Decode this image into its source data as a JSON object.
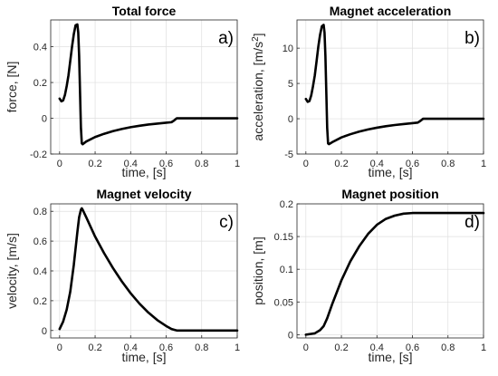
{
  "chart_data": [
    {
      "type": "line",
      "title": "Total force",
      "panel_letter": "a)",
      "xlabel": "time, [s]",
      "ylabel": "force, [N]",
      "xlim": [
        -0.05,
        1.0
      ],
      "ylim": [
        -0.2,
        0.55
      ],
      "xticks": [
        0,
        0.2,
        0.4,
        0.6,
        0.8,
        1
      ],
      "xtick_labels": [
        "0",
        "0.2",
        "0.4",
        "0.6",
        "0.8",
        "1"
      ],
      "yticks": [
        -0.2,
        0,
        0.2,
        0.4
      ],
      "ytick_labels": [
        "-0.2",
        "0",
        "0.2",
        "0.4"
      ],
      "grid": true,
      "series": [
        {
          "x": [
            0.0,
            0.01,
            0.02,
            0.03,
            0.04,
            0.05,
            0.06,
            0.07,
            0.08,
            0.09,
            0.1,
            0.105,
            0.11,
            0.115,
            0.12,
            0.125,
            0.13,
            0.15,
            0.2,
            0.25,
            0.3,
            0.35,
            0.4,
            0.45,
            0.5,
            0.55,
            0.6,
            0.63,
            0.645,
            0.66,
            0.7,
            0.8,
            0.9,
            1.0
          ],
          "y": [
            0.11,
            0.095,
            0.1,
            0.13,
            0.18,
            0.24,
            0.32,
            0.4,
            0.47,
            0.52,
            0.525,
            0.48,
            0.35,
            0.15,
            -0.05,
            -0.14,
            -0.145,
            -0.13,
            -0.105,
            -0.087,
            -0.072,
            -0.06,
            -0.05,
            -0.042,
            -0.035,
            -0.03,
            -0.025,
            -0.022,
            -0.012,
            0.0,
            0.0,
            0.0,
            0.0,
            0.0
          ]
        }
      ]
    },
    {
      "type": "line",
      "title": "Magnet acceleration",
      "panel_letter": "b)",
      "xlabel": "time, [s]",
      "ylabel": "acceleration, [m/s",
      "ylabel_sup": "2",
      "ylabel_end": "]",
      "xlim": [
        -0.05,
        1.0
      ],
      "ylim": [
        -5,
        14
      ],
      "xticks": [
        0,
        0.2,
        0.4,
        0.6,
        0.8,
        1
      ],
      "xtick_labels": [
        "0",
        "0.2",
        "0.4",
        "0.6",
        "0.8",
        "1"
      ],
      "yticks": [
        -5,
        0,
        5,
        10
      ],
      "ytick_labels": [
        "-5",
        "0",
        "5",
        "10"
      ],
      "grid": true,
      "series": [
        {
          "x": [
            0.0,
            0.01,
            0.02,
            0.03,
            0.04,
            0.05,
            0.06,
            0.07,
            0.08,
            0.09,
            0.1,
            0.105,
            0.11,
            0.115,
            0.12,
            0.125,
            0.13,
            0.15,
            0.2,
            0.25,
            0.3,
            0.35,
            0.4,
            0.45,
            0.5,
            0.55,
            0.6,
            0.63,
            0.645,
            0.66,
            0.7,
            0.8,
            0.9,
            1.0
          ],
          "y": [
            2.8,
            2.4,
            2.5,
            3.3,
            4.6,
            6.1,
            8.1,
            10.2,
            11.9,
            13.1,
            13.3,
            12.2,
            8.9,
            3.8,
            -1.3,
            -3.5,
            -3.6,
            -3.3,
            -2.65,
            -2.2,
            -1.82,
            -1.52,
            -1.27,
            -1.06,
            -0.89,
            -0.76,
            -0.63,
            -0.55,
            -0.3,
            0.0,
            0.0,
            0.0,
            0.0,
            0.0
          ]
        }
      ]
    },
    {
      "type": "line",
      "title": "Magnet velocity",
      "panel_letter": "c)",
      "xlabel": "time, [s]",
      "ylabel": "velocity, [m/s]",
      "xlim": [
        -0.05,
        1.0
      ],
      "ylim": [
        -0.05,
        0.85
      ],
      "xticks": [
        0,
        0.2,
        0.4,
        0.6,
        0.8,
        1
      ],
      "xtick_labels": [
        "0",
        "0.2",
        "0.4",
        "0.6",
        "0.8",
        "1"
      ],
      "yticks": [
        0,
        0.2,
        0.4,
        0.6,
        0.8
      ],
      "ytick_labels": [
        "0",
        "0.2",
        "0.4",
        "0.6",
        "0.8"
      ],
      "grid": true,
      "series": [
        {
          "x": [
            0.0,
            0.02,
            0.04,
            0.06,
            0.08,
            0.1,
            0.11,
            0.12,
            0.125,
            0.13,
            0.15,
            0.2,
            0.25,
            0.3,
            0.35,
            0.4,
            0.45,
            0.5,
            0.55,
            0.6,
            0.63,
            0.65,
            0.66,
            0.7,
            0.8,
            0.9,
            1.0
          ],
          "y": [
            0.01,
            0.06,
            0.14,
            0.26,
            0.44,
            0.66,
            0.76,
            0.81,
            0.82,
            0.81,
            0.76,
            0.63,
            0.52,
            0.42,
            0.33,
            0.25,
            0.18,
            0.12,
            0.07,
            0.03,
            0.01,
            0.003,
            0.0,
            0.0,
            0.0,
            0.0,
            0.0
          ]
        }
      ]
    },
    {
      "type": "line",
      "title": "Magnet position",
      "panel_letter": "d)",
      "xlabel": "time, [s]",
      "ylabel": "position, [m]",
      "xlim": [
        -0.05,
        1.0
      ],
      "ylim": [
        -0.005,
        0.2
      ],
      "xticks": [
        0,
        0.2,
        0.4,
        0.6,
        0.8,
        1
      ],
      "xtick_labels": [
        "0",
        "0.2",
        "0.4",
        "0.6",
        "0.8",
        "1"
      ],
      "yticks": [
        0,
        0.05,
        0.1,
        0.15,
        0.2
      ],
      "ytick_labels": [
        "0",
        "0.05",
        "0.1",
        "0.15",
        "0.2"
      ],
      "grid": true,
      "series": [
        {
          "x": [
            0.0,
            0.05,
            0.08,
            0.1,
            0.12,
            0.15,
            0.2,
            0.25,
            0.3,
            0.35,
            0.4,
            0.45,
            0.5,
            0.55,
            0.6,
            0.65,
            0.7,
            0.8,
            0.9,
            1.0
          ],
          "y": [
            0.0,
            0.002,
            0.007,
            0.013,
            0.025,
            0.048,
            0.083,
            0.112,
            0.135,
            0.154,
            0.168,
            0.177,
            0.182,
            0.185,
            0.186,
            0.186,
            0.186,
            0.186,
            0.186,
            0.186
          ]
        }
      ]
    }
  ]
}
